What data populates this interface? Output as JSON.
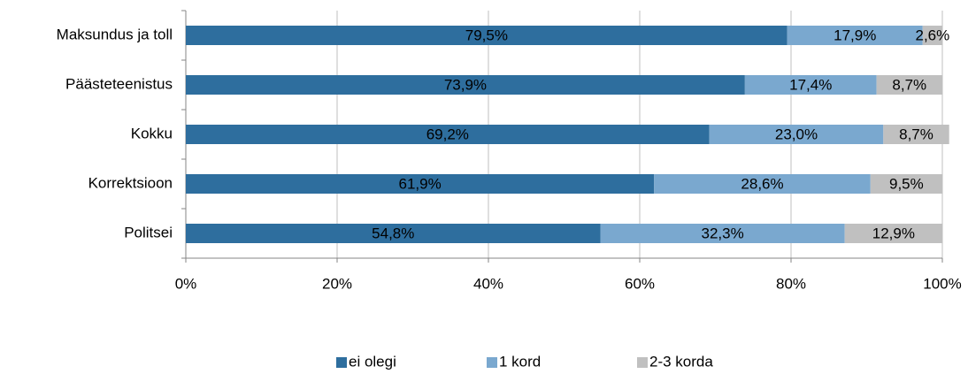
{
  "chart_data": {
    "type": "bar",
    "orientation": "horizontal",
    "stacked": true,
    "categories": [
      "Maksundus ja toll",
      "Päästeteenistus",
      "Kokku",
      "Korrektsioon",
      "Politsei"
    ],
    "series": [
      {
        "name": "ei olegi",
        "color": "#2e6e9e",
        "values": [
          79.5,
          73.9,
          69.2,
          61.9,
          54.8
        ],
        "value_labels": [
          "79,5%",
          "73,9%",
          "69,2%",
          "61,9%",
          "54,8%"
        ]
      },
      {
        "name": "1 kord",
        "color": "#7aa8cf",
        "values": [
          17.9,
          17.4,
          23.0,
          28.6,
          32.3
        ],
        "value_labels": [
          "17,9%",
          "17,4%",
          "23,0%",
          "28,6%",
          "32,3%"
        ]
      },
      {
        "name": "2-3 korda",
        "color": "#c0c0c0",
        "values": [
          2.6,
          8.7,
          8.7,
          9.5,
          12.9
        ],
        "value_labels": [
          "2,6%",
          "8,7%",
          "8,7%",
          "9,5%",
          "12,9%"
        ]
      }
    ],
    "xlim": [
      0,
      100
    ],
    "xticks": [
      {
        "value": 0,
        "label": "0%"
      },
      {
        "value": 20,
        "label": "20%"
      },
      {
        "value": 40,
        "label": "40%"
      },
      {
        "value": 60,
        "label": "60%"
      },
      {
        "value": 80,
        "label": "80%"
      },
      {
        "value": 100,
        "label": "100%"
      }
    ],
    "grid": true,
    "legend": "bottom"
  }
}
